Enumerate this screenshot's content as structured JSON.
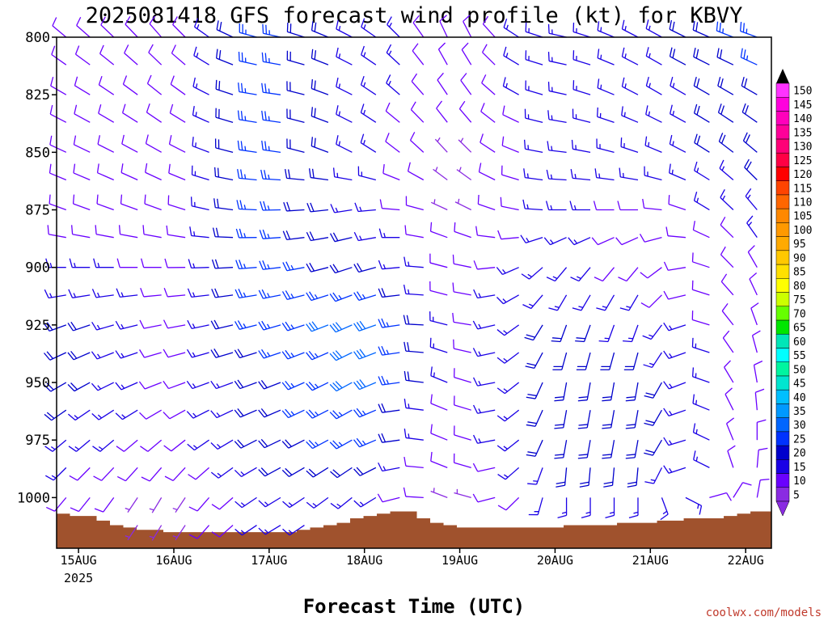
{
  "title": "2025081418 GFS forecast wind profile (kt) for KBVY",
  "xlabel": "Forecast Time (UTC)",
  "credit": "coolwx.com/models",
  "chart_data": {
    "type": "wind_barbs",
    "title": "2025081418 GFS forecast wind profile (kt) for KBVY",
    "xlabel": "Forecast Time (UTC)",
    "ylabel": "",
    "x_ticks": [
      "15AUG",
      "16AUG",
      "17AUG",
      "18AUG",
      "19AUG",
      "20AUG",
      "21AUG",
      "22AUG"
    ],
    "x_tick_year": "2025",
    "x_range_days": [
      -0.23,
      7.27
    ],
    "y_ticks": [
      800,
      825,
      850,
      875,
      900,
      925,
      950,
      975,
      1000
    ],
    "y_range_hPa": [
      800,
      1022
    ],
    "y_axis_reversed": true,
    "colorbar": {
      "levels": [
        5,
        10,
        15,
        20,
        25,
        30,
        35,
        40,
        45,
        50,
        55,
        60,
        65,
        70,
        75,
        80,
        85,
        90,
        95,
        100,
        105,
        110,
        115,
        120,
        125,
        130,
        135,
        140,
        145,
        150
      ],
      "colors": [
        "#8a2be2",
        "#6a00ff",
        "#1a00e6",
        "#0000cc",
        "#0033ff",
        "#0066ff",
        "#0099ff",
        "#00bfff",
        "#00e5d0",
        "#00f5a0",
        "#00ffff",
        "#00e6b8",
        "#00e600",
        "#66ff00",
        "#ccff00",
        "#ffff00",
        "#ffe000",
        "#ffc800",
        "#ffaa00",
        "#ff9900",
        "#ff8800",
        "#ff6600",
        "#ff4400",
        "#ff0000",
        "#ff0044",
        "#ff0077",
        "#ff0099",
        "#ff00bb",
        "#ff00dd",
        "#ff33ff"
      ],
      "units": "kt"
    },
    "terrain": {
      "color": "#a0522d",
      "surface_pressure_hPa": [
        1007,
        1008,
        1008,
        1010,
        1012,
        1013,
        1014,
        1014,
        1015,
        1015,
        1015,
        1015,
        1015,
        1015,
        1015,
        1015,
        1015,
        1015,
        1014,
        1013,
        1012,
        1011,
        1009,
        1008,
        1007,
        1006,
        1006,
        1009,
        1011,
        1012,
        1013,
        1013,
        1013,
        1013,
        1013,
        1013,
        1013,
        1013,
        1012,
        1012,
        1012,
        1012,
        1011,
        1011,
        1011,
        1010,
        1010,
        1009,
        1009,
        1009,
        1008,
        1007,
        1006,
        1006,
        1006
      ],
      "times_days": [
        -0.23,
        -0.09,
        0.05,
        0.19,
        0.33,
        0.47,
        0.61,
        0.75,
        0.89,
        1.03,
        1.17,
        1.31,
        1.45,
        1.59,
        1.73,
        1.87,
        2.01,
        2.15,
        2.29,
        2.43,
        2.57,
        2.71,
        2.85,
        2.99,
        3.13,
        3.27,
        3.41,
        3.55,
        3.69,
        3.83,
        3.97,
        4.11,
        4.25,
        4.39,
        4.53,
        4.67,
        4.81,
        4.95,
        5.09,
        5.23,
        5.37,
        5.51,
        5.65,
        5.79,
        5.93,
        6.07,
        6.21,
        6.35,
        6.49,
        6.63,
        6.77,
        6.91,
        7.05,
        7.19,
        7.27
      ]
    },
    "barb_pressure_levels_hPa": [
      800,
      812,
      825,
      837,
      850,
      862,
      875,
      887,
      900,
      912,
      925,
      937,
      950,
      962,
      975,
      987,
      1000,
      1012
    ],
    "barb_time_step_hours": 6,
    "wind_series": [
      {
        "name": "",
        "time_days": 0.0,
        "profile": [
          {
            "p": 800,
            "dir": 310,
            "spd": 10
          },
          {
            "p": 825,
            "dir": 300,
            "spd": 10
          },
          {
            "p": 850,
            "dir": 295,
            "spd": 10
          },
          {
            "p": 875,
            "dir": 290,
            "spd": 10
          },
          {
            "p": 900,
            "dir": 270,
            "spd": 15
          },
          {
            "p": 925,
            "dir": 250,
            "spd": 20
          },
          {
            "p": 950,
            "dir": 240,
            "spd": 20
          },
          {
            "p": 975,
            "dir": 230,
            "spd": 15
          },
          {
            "p": 1000,
            "dir": 220,
            "spd": 10
          }
        ]
      },
      {
        "name": "",
        "time_days": 1.0,
        "profile": [
          {
            "p": 800,
            "dir": 320,
            "spd": 10
          },
          {
            "p": 825,
            "dir": 310,
            "spd": 10
          },
          {
            "p": 850,
            "dir": 300,
            "spd": 10
          },
          {
            "p": 875,
            "dir": 290,
            "spd": 10
          },
          {
            "p": 900,
            "dir": 270,
            "spd": 10
          },
          {
            "p": 925,
            "dir": 260,
            "spd": 10
          },
          {
            "p": 950,
            "dir": 250,
            "spd": 10
          },
          {
            "p": 975,
            "dir": 230,
            "spd": 10
          },
          {
            "p": 1000,
            "dir": 210,
            "spd": 5
          }
        ]
      },
      {
        "name": "",
        "time_days": 2.0,
        "profile": [
          {
            "p": 800,
            "dir": 280,
            "spd": 25
          },
          {
            "p": 825,
            "dir": 275,
            "spd": 25
          },
          {
            "p": 850,
            "dir": 275,
            "spd": 25
          },
          {
            "p": 875,
            "dir": 270,
            "spd": 25
          },
          {
            "p": 900,
            "dir": 265,
            "spd": 25
          },
          {
            "p": 925,
            "dir": 255,
            "spd": 25
          },
          {
            "p": 950,
            "dir": 250,
            "spd": 20
          },
          {
            "p": 975,
            "dir": 245,
            "spd": 20
          },
          {
            "p": 1000,
            "dir": 240,
            "spd": 15
          }
        ]
      },
      {
        "name": "",
        "time_days": 3.0,
        "profile": [
          {
            "p": 800,
            "dir": 300,
            "spd": 15
          },
          {
            "p": 825,
            "dir": 300,
            "spd": 15
          },
          {
            "p": 850,
            "dir": 300,
            "spd": 15
          },
          {
            "p": 875,
            "dir": 260,
            "spd": 15
          },
          {
            "p": 900,
            "dir": 250,
            "spd": 20
          },
          {
            "p": 925,
            "dir": 245,
            "spd": 30
          },
          {
            "p": 950,
            "dir": 240,
            "spd": 30
          },
          {
            "p": 975,
            "dir": 240,
            "spd": 25
          },
          {
            "p": 1000,
            "dir": 230,
            "spd": 15
          }
        ]
      },
      {
        "name": "",
        "time_days": 4.0,
        "profile": [
          {
            "p": 800,
            "dir": 340,
            "spd": 10
          },
          {
            "p": 825,
            "dir": 330,
            "spd": 10
          },
          {
            "p": 850,
            "dir": 320,
            "spd": 5
          },
          {
            "p": 875,
            "dir": 300,
            "spd": 5
          },
          {
            "p": 900,
            "dir": 290,
            "spd": 10
          },
          {
            "p": 925,
            "dir": 290,
            "spd": 10
          },
          {
            "p": 950,
            "dir": 300,
            "spd": 10
          },
          {
            "p": 975,
            "dir": 300,
            "spd": 10
          },
          {
            "p": 1000,
            "dir": 300,
            "spd": 5
          }
        ]
      },
      {
        "name": "",
        "time_days": 5.0,
        "profile": [
          {
            "p": 800,
            "dir": 280,
            "spd": 15
          },
          {
            "p": 825,
            "dir": 280,
            "spd": 15
          },
          {
            "p": 850,
            "dir": 275,
            "spd": 15
          },
          {
            "p": 875,
            "dir": 270,
            "spd": 15
          },
          {
            "p": 900,
            "dir": 220,
            "spd": 15
          },
          {
            "p": 925,
            "dir": 200,
            "spd": 20
          },
          {
            "p": 950,
            "dir": 190,
            "spd": 20
          },
          {
            "p": 975,
            "dir": 190,
            "spd": 20
          },
          {
            "p": 1000,
            "dir": 180,
            "spd": 15
          }
        ]
      },
      {
        "name": "",
        "time_days": 6.0,
        "profile": [
          {
            "p": 800,
            "dir": 300,
            "spd": 15
          },
          {
            "p": 825,
            "dir": 300,
            "spd": 15
          },
          {
            "p": 850,
            "dir": 290,
            "spd": 15
          },
          {
            "p": 875,
            "dir": 270,
            "spd": 10
          },
          {
            "p": 900,
            "dir": 220,
            "spd": 10
          },
          {
            "p": 925,
            "dir": 200,
            "spd": 15
          },
          {
            "p": 950,
            "dir": 190,
            "spd": 20
          },
          {
            "p": 975,
            "dir": 190,
            "spd": 20
          },
          {
            "p": 1000,
            "dir": 180,
            "spd": 15
          }
        ]
      },
      {
        "name": "",
        "time_days": 7.0,
        "profile": [
          {
            "p": 800,
            "dir": 290,
            "spd": 25
          },
          {
            "p": 825,
            "dir": 300,
            "spd": 20
          },
          {
            "p": 850,
            "dir": 310,
            "spd": 20
          },
          {
            "p": 875,
            "dir": 320,
            "spd": 15
          },
          {
            "p": 900,
            "dir": 330,
            "spd": 10
          },
          {
            "p": 925,
            "dir": 340,
            "spd": 10
          },
          {
            "p": 950,
            "dir": 350,
            "spd": 10
          },
          {
            "p": 975,
            "dir": 0,
            "spd": 10
          },
          {
            "p": 1000,
            "dir": 10,
            "spd": 10
          }
        ]
      }
    ]
  }
}
